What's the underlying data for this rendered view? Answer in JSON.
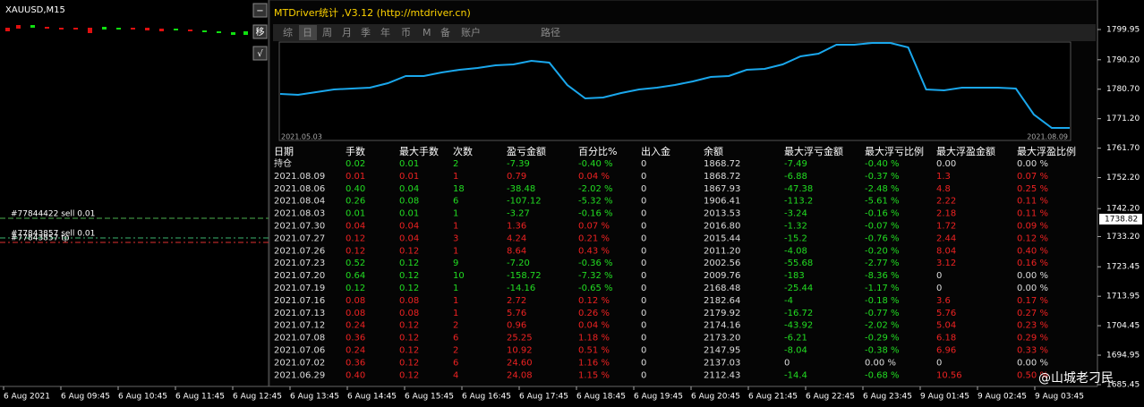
{
  "chart_window": {
    "symbol": "XAUUSD,M15",
    "buttons": [
      "−",
      "移",
      "√"
    ],
    "order_labels": [
      "#77844422 sell 0.01",
      "#77843857 sell 0.01",
      "#77843857 tp"
    ],
    "price_axis": {
      "ylim": [
        1684.87,
        1809.47
      ],
      "yticks": [
        1799.95,
        {
          "value": 1790.2,
          "label": "1790.20"
        },
        {
          "value": 1780.7,
          "label": "1780.70"
        },
        {
          "value": 1771.2,
          "label": "1771.20"
        },
        {
          "value": 1761.7,
          "label": "1761.70"
        },
        {
          "value": 1752.2,
          "label": "1752.20"
        },
        {
          "value": 1742.2,
          "label": "1742.20"
        },
        {
          "value": 1733.2,
          "label": "1733.20"
        },
        1723.45,
        1713.95,
        1704.45,
        1694.95,
        1685.45
      ],
      "current_price": 1738.82
    },
    "time_axis": [
      "6 Aug 2021",
      "6 Aug 09:45",
      "6 Aug 10:45",
      "6 Aug 11:45",
      "6 Aug 12:45",
      "6 Aug 13:45",
      "6 Aug 14:45",
      "6 Aug 15:45",
      "6 Aug 16:45",
      "6 Aug 17:45",
      "6 Aug 18:45",
      "6 Aug 19:45",
      "6 Aug 20:45",
      "6 Aug 21:45",
      "6 Aug 22:45",
      "6 Aug 23:45",
      "9 Aug 01:45",
      "9 Aug 02:45",
      "9 Aug 03:45"
    ]
  },
  "panel": {
    "title": "MTDriver统计 ,V3.12 (http://mtdriver.cn)",
    "tabs": [
      "综",
      "日",
      "周",
      "月",
      "季",
      "年",
      "币",
      "M",
      "备",
      "账户",
      "路径"
    ],
    "active_tab": 1,
    "equity_chart": {
      "type": "line",
      "x_labels": [
        "2021.05.03",
        "2021.08.09"
      ],
      "color": "#1aa7ec",
      "ylim": [
        1760,
        2300
      ],
      "values": [
        1975,
        1970,
        1985,
        2000,
        2005,
        2010,
        2035,
        2075,
        2075,
        2095,
        2110,
        2120,
        2135,
        2140,
        2160,
        2150,
        2025,
        1950,
        1955,
        1980,
        2000,
        2010,
        2025,
        2045,
        2070,
        2075,
        2110,
        2115,
        2140,
        2185,
        2200,
        2250,
        2250,
        2260,
        2260,
        2235,
        2000,
        1995,
        2010,
        2010,
        2010,
        2005,
        1860,
        1785,
        1785
      ]
    },
    "table": {
      "header": [
        "日期",
        "手数",
        "最大手数",
        "次数",
        "盈亏金额",
        "百分比%",
        "出入金",
        "余额",
        "最大浮亏金额",
        "最大浮亏比例",
        "最大浮盈金额",
        "最大浮盈比例"
      ],
      "rows": [
        {
          "color": "#22dd22",
          "cells": [
            "持仓",
            "0.02",
            "0.01",
            "2",
            "-7.39",
            "-0.40 %",
            "0",
            "1868.72",
            "-7.49",
            "-0.40 %",
            "0.00",
            "0.00 %"
          ]
        },
        {
          "color": "#ee2222",
          "cells": [
            "2021.08.09",
            "0.01",
            "0.01",
            "1",
            "0.79",
            "0.04 %",
            "0",
            "1868.72",
            "-6.88",
            "-0.37 %",
            "1.3",
            "0.07 %"
          ]
        },
        {
          "color": "#22dd22",
          "cells": [
            "2021.08.06",
            "0.40",
            "0.04",
            "18",
            "-38.48",
            "-2.02 %",
            "0",
            "1867.93",
            "-47.38",
            "-2.48 %",
            "4.8",
            "0.25 %"
          ]
        },
        {
          "color": "#22dd22",
          "cells": [
            "2021.08.04",
            "0.26",
            "0.08",
            "6",
            "-107.12",
            "-5.32 %",
            "0",
            "1906.41",
            "-113.2",
            "-5.61 %",
            "2.22",
            "0.11 %"
          ]
        },
        {
          "color": "#22dd22",
          "cells": [
            "2021.08.03",
            "0.01",
            "0.01",
            "1",
            "-3.27",
            "-0.16 %",
            "0",
            "2013.53",
            "-3.24",
            "-0.16 %",
            "2.18",
            "0.11 %"
          ]
        },
        {
          "color": "#ee2222",
          "cells": [
            "2021.07.30",
            "0.04",
            "0.04",
            "1",
            "1.36",
            "0.07 %",
            "0",
            "2016.80",
            "-1.32",
            "-0.07 %",
            "1.72",
            "0.09 %"
          ]
        },
        {
          "color": "#ee2222",
          "cells": [
            "2021.07.27",
            "0.12",
            "0.04",
            "3",
            "4.24",
            "0.21 %",
            "0",
            "2015.44",
            "-15.2",
            "-0.76 %",
            "2.44",
            "0.12 %"
          ]
        },
        {
          "color": "#ee2222",
          "cells": [
            "2021.07.26",
            "0.12",
            "0.12",
            "1",
            "8.64",
            "0.43 %",
            "0",
            "2011.20",
            "-4.08",
            "-0.20 %",
            "8.04",
            "0.40 %"
          ]
        },
        {
          "color": "#22dd22",
          "cells": [
            "2021.07.23",
            "0.52",
            "0.12",
            "9",
            "-7.20",
            "-0.36 %",
            "0",
            "2002.56",
            "-55.68",
            "-2.77 %",
            "3.12",
            "0.16 %"
          ]
        },
        {
          "color": "#22dd22",
          "cells": [
            "2021.07.20",
            "0.64",
            "0.12",
            "10",
            "-158.72",
            "-7.32 %",
            "0",
            "2009.76",
            "-183",
            "-8.36 %",
            "0",
            "0.00 %"
          ]
        },
        {
          "color": "#22dd22",
          "cells": [
            "2021.07.19",
            "0.12",
            "0.12",
            "1",
            "-14.16",
            "-0.65 %",
            "0",
            "2168.48",
            "-25.44",
            "-1.17 %",
            "0",
            "0.00 %"
          ]
        },
        {
          "color": "#ee2222",
          "cells": [
            "2021.07.16",
            "0.08",
            "0.08",
            "1",
            "2.72",
            "0.12 %",
            "0",
            "2182.64",
            "-4",
            "-0.18 %",
            "3.6",
            "0.17 %"
          ]
        },
        {
          "color": "#ee2222",
          "cells": [
            "2021.07.13",
            "0.08",
            "0.08",
            "1",
            "5.76",
            "0.26 %",
            "0",
            "2179.92",
            "-16.72",
            "-0.77 %",
            "5.76",
            "0.27 %"
          ]
        },
        {
          "color": "#ee2222",
          "cells": [
            "2021.07.12",
            "0.24",
            "0.12",
            "2",
            "0.96",
            "0.04 %",
            "0",
            "2174.16",
            "-43.92",
            "-2.02 %",
            "5.04",
            "0.23 %"
          ]
        },
        {
          "color": "#ee2222",
          "cells": [
            "2021.07.08",
            "0.36",
            "0.12",
            "6",
            "25.25",
            "1.18 %",
            "0",
            "2173.20",
            "-6.21",
            "-0.29 %",
            "6.18",
            "0.29 %"
          ]
        },
        {
          "color": "#ee2222",
          "cells": [
            "2021.07.06",
            "0.24",
            "0.12",
            "2",
            "10.92",
            "0.51 %",
            "0",
            "2147.95",
            "-8.04",
            "-0.38 %",
            "6.96",
            "0.33 %"
          ]
        },
        {
          "color": "#ee2222",
          "cells": [
            "2021.07.02",
            "0.36",
            "0.12",
            "6",
            "24.60",
            "1.16 %",
            "0",
            "2137.03",
            "0",
            "0.00 %",
            "0",
            "0.00 %"
          ]
        },
        {
          "color": "#ee2222",
          "cells": [
            "2021.06.29",
            "0.40",
            "0.12",
            "4",
            "24.08",
            "1.15 %",
            "0",
            "2112.43",
            "-14.4",
            "-0.68 %",
            "10.56",
            "0.50 %"
          ]
        }
      ]
    }
  },
  "watermark": "@山城老刁民"
}
